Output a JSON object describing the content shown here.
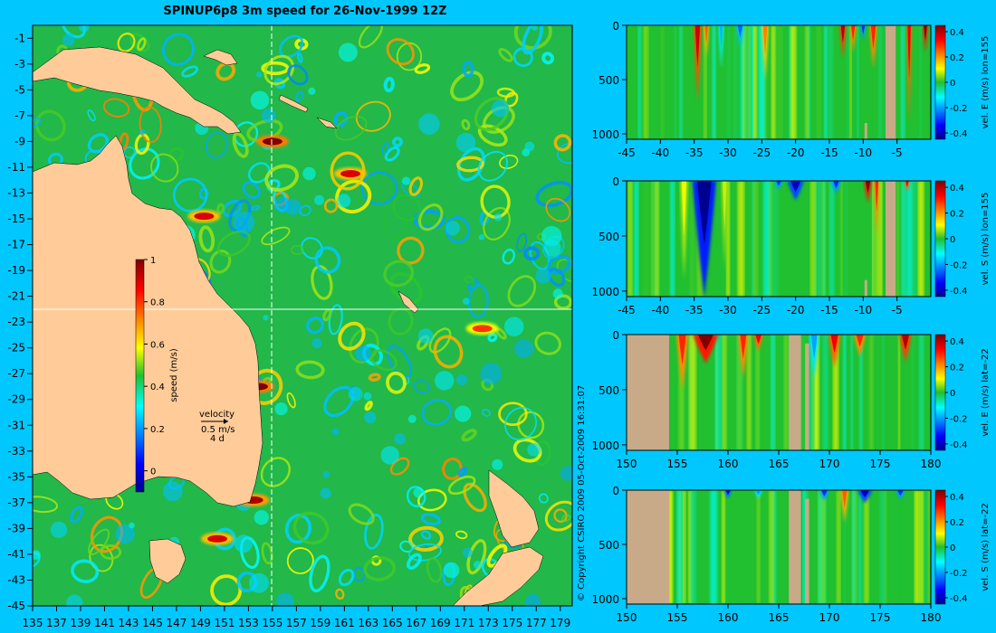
{
  "figure": {
    "title": "SPINUP6p8 3m speed for 26-Nov-1999 12Z",
    "copyright": "© Copyright CSIRO 2009   05-Oct-2009 16:31:07",
    "colors": {
      "background": "#00c8ff",
      "land": "#ffcc99",
      "land_sections": "#c8aa88",
      "section_line": "#ffffff"
    }
  },
  "chart_data": [
    {
      "id": "map",
      "type": "heatmap",
      "title": "SPINUP6p8 3m speed for 26-Nov-1999 12Z",
      "x_ticks": [
        "135",
        "137",
        "139",
        "141",
        "143",
        "145",
        "147",
        "149",
        "151",
        "153",
        "155",
        "157",
        "159",
        "161",
        "163",
        "165",
        "167",
        "169",
        "171",
        "173",
        "175",
        "177",
        "179"
      ],
      "y_ticks": [
        "-1",
        "-3",
        "-5",
        "-7",
        "-9",
        "-11",
        "-13",
        "-15",
        "-17",
        "-19",
        "-21",
        "-23",
        "-25",
        "-27",
        "-29",
        "-31",
        "-33",
        "-35",
        "-37",
        "-39",
        "-41",
        "-43",
        "-45"
      ],
      "xlim": [
        135,
        180
      ],
      "ylim": [
        -45,
        0
      ],
      "colorbar": {
        "label": "speed (m/s)",
        "ticks": [
          "1",
          "0.8",
          "0.6",
          "0.4",
          "0.2",
          "0"
        ],
        "range": [
          -0.1,
          1
        ]
      },
      "velocity_legend": {
        "title": "velocity",
        "speed": "0.5 m/s",
        "duration": "4 d"
      },
      "section_lines": {
        "lon": 155,
        "lat": -22
      },
      "hotspots": [
        {
          "lon": 155.0,
          "lat": -9.0,
          "speed": 1.0
        },
        {
          "lon": 149.3,
          "lat": -14.8,
          "speed": 0.9
        },
        {
          "lon": 153.8,
          "lat": -28.0,
          "speed": 1.0
        },
        {
          "lon": 153.4,
          "lat": -36.8,
          "speed": 0.95
        },
        {
          "lon": 150.4,
          "lat": -39.8,
          "speed": 0.9
        },
        {
          "lon": 172.5,
          "lat": -23.5,
          "speed": 0.8
        },
        {
          "lon": 161.5,
          "lat": -11.5,
          "speed": 0.9
        }
      ]
    },
    {
      "id": "section1",
      "type": "heatmap",
      "ylabel": "vel. E (m/s) lon=155",
      "x_ticks": [
        "-45",
        "-40",
        "-35",
        "-30",
        "-25",
        "-20",
        "-15",
        "-10",
        "-5"
      ],
      "y_ticks": [
        "0",
        "500",
        "1000"
      ],
      "xlim": [
        -45,
        0
      ],
      "ylim": [
        1050,
        0
      ],
      "colorbar_ticks": [
        "0.4",
        "0.2",
        "0",
        "-0.2",
        "-0.4"
      ],
      "clim": [
        -0.45,
        0.45
      ],
      "bands": [
        {
          "x": -34.5,
          "w": 1.2,
          "v": 0.38,
          "depth": 700
        },
        {
          "x": -33.2,
          "w": 0.8,
          "v": 0.25,
          "depth": 300
        },
        {
          "x": -31.0,
          "w": 0.8,
          "v": -0.18,
          "depth": 400
        },
        {
          "x": -28.2,
          "w": 1.2,
          "v": -0.25,
          "depth": 200
        },
        {
          "x": -24.5,
          "w": 1.0,
          "v": 0.22,
          "depth": 500
        },
        {
          "x": -13.0,
          "w": 1.0,
          "v": 0.4,
          "depth": 300
        },
        {
          "x": -11.5,
          "w": 1.0,
          "v": 0.3,
          "depth": 250
        },
        {
          "x": -10.0,
          "w": 0.8,
          "v": -0.3,
          "depth": 150
        },
        {
          "x": -8.5,
          "w": 1.2,
          "v": 0.3,
          "depth": 400
        },
        {
          "x": -3.2,
          "w": 0.8,
          "v": 0.35,
          "depth": 900
        },
        {
          "x": -0.8,
          "w": 0.8,
          "v": 0.45,
          "depth": 250
        }
      ],
      "land": [
        {
          "x0": -6.7,
          "x1": -5.2,
          "depth0": 0
        },
        {
          "x0": -9.8,
          "x1": -9.4,
          "depth0": 900
        }
      ]
    },
    {
      "id": "section2",
      "type": "heatmap",
      "ylabel": "vel. S (m/s) lon=155",
      "x_ticks": [
        "-45",
        "-40",
        "-35",
        "-30",
        "-25",
        "-20",
        "-15",
        "-10",
        "-5"
      ],
      "y_ticks": [
        "0",
        "500",
        "1000"
      ],
      "xlim": [
        -45,
        0
      ],
      "ylim": [
        1050,
        0
      ],
      "colorbar_ticks": [
        "0.4",
        "0.2",
        "0",
        "-0.2",
        "-0.4"
      ],
      "clim": [
        -0.45,
        0.45
      ],
      "bands": [
        {
          "x": -33.5,
          "w": 3.5,
          "v": -0.45,
          "depth": 1050
        },
        {
          "x": -36.5,
          "w": 1.2,
          "v": 0.1,
          "depth": 900
        },
        {
          "x": -30.5,
          "w": 1.0,
          "v": 0.08,
          "depth": 800
        },
        {
          "x": -20.0,
          "w": 2.5,
          "v": -0.4,
          "depth": 180
        },
        {
          "x": -22.5,
          "w": 1.2,
          "v": -0.3,
          "depth": 80
        },
        {
          "x": -14.0,
          "w": 1.5,
          "v": -0.3,
          "depth": 120
        },
        {
          "x": -9.3,
          "w": 1.2,
          "v": 0.45,
          "depth": 200
        },
        {
          "x": -8.0,
          "w": 0.8,
          "v": 0.3,
          "depth": 500
        },
        {
          "x": -3.5,
          "w": 0.8,
          "v": 0.35,
          "depth": 100
        }
      ],
      "land": [
        {
          "x0": -6.7,
          "x1": -5.2,
          "depth0": 0
        },
        {
          "x0": -9.8,
          "x1": -9.4,
          "depth0": 900
        }
      ]
    },
    {
      "id": "section3",
      "type": "heatmap",
      "ylabel": "vel. E (m/s) lat=-22",
      "x_ticks": [
        "150",
        "155",
        "160",
        "165",
        "170",
        "175",
        "180"
      ],
      "y_ticks": [
        "0",
        "500",
        "1000"
      ],
      "xlim": [
        150,
        180
      ],
      "ylim": [
        1050,
        0
      ],
      "colorbar_ticks": [
        "0.4",
        "0.2",
        "0",
        "-0.2",
        "-0.4"
      ],
      "clim": [
        -0.45,
        0.45
      ],
      "bands": [
        {
          "x": 157.8,
          "w": 2.5,
          "v": 0.45,
          "depth": 260
        },
        {
          "x": 155.5,
          "w": 1.2,
          "v": 0.3,
          "depth": 500
        },
        {
          "x": 161.5,
          "w": 1.0,
          "v": 0.3,
          "depth": 400
        },
        {
          "x": 163.0,
          "w": 1.0,
          "v": 0.35,
          "depth": 150
        },
        {
          "x": 170.5,
          "w": 1.2,
          "v": 0.35,
          "depth": 300
        },
        {
          "x": 173.0,
          "w": 1.2,
          "v": 0.3,
          "depth": 200
        },
        {
          "x": 177.5,
          "w": 1.2,
          "v": 0.4,
          "depth": 250
        },
        {
          "x": 168.5,
          "w": 1.0,
          "v": -0.2,
          "depth": 400
        }
      ],
      "land": [
        {
          "x0": 150,
          "x1": 154.2,
          "depth0": 0
        },
        {
          "x0": 166.0,
          "x1": 167.2,
          "depth0": 0
        },
        {
          "x0": 167.6,
          "x1": 168.0,
          "depth0": 80
        }
      ]
    },
    {
      "id": "section4",
      "type": "heatmap",
      "ylabel": "vel. S (m/s) lat=-22",
      "x_ticks": [
        "150",
        "155",
        "160",
        "165",
        "170",
        "175",
        "180"
      ],
      "y_ticks": [
        "0",
        "500",
        "1000"
      ],
      "xlim": [
        150,
        180
      ],
      "ylim": [
        1050,
        0
      ],
      "colorbar_ticks": [
        "0.4",
        "0.2",
        "0",
        "-0.2",
        "-0.4"
      ],
      "clim": [
        -0.45,
        0.45
      ],
      "bands": [
        {
          "x": 153.9,
          "w": 0.4,
          "v": 0.45,
          "depth": 150
        },
        {
          "x": 160.0,
          "w": 0.8,
          "v": -0.35,
          "depth": 80
        },
        {
          "x": 163.0,
          "w": 0.8,
          "v": -0.2,
          "depth": 80
        },
        {
          "x": 169.5,
          "w": 1.0,
          "v": -0.3,
          "depth": 100
        },
        {
          "x": 173.5,
          "w": 1.5,
          "v": -0.4,
          "depth": 120
        },
        {
          "x": 177.0,
          "w": 1.0,
          "v": -0.3,
          "depth": 90
        },
        {
          "x": 171.5,
          "w": 0.8,
          "v": 0.25,
          "depth": 300
        }
      ],
      "land": [
        {
          "x0": 150,
          "x1": 154.2,
          "depth0": 0
        },
        {
          "x0": 166.0,
          "x1": 167.2,
          "depth0": 0
        },
        {
          "x0": 167.6,
          "x1": 168.0,
          "depth0": 80
        }
      ]
    }
  ]
}
